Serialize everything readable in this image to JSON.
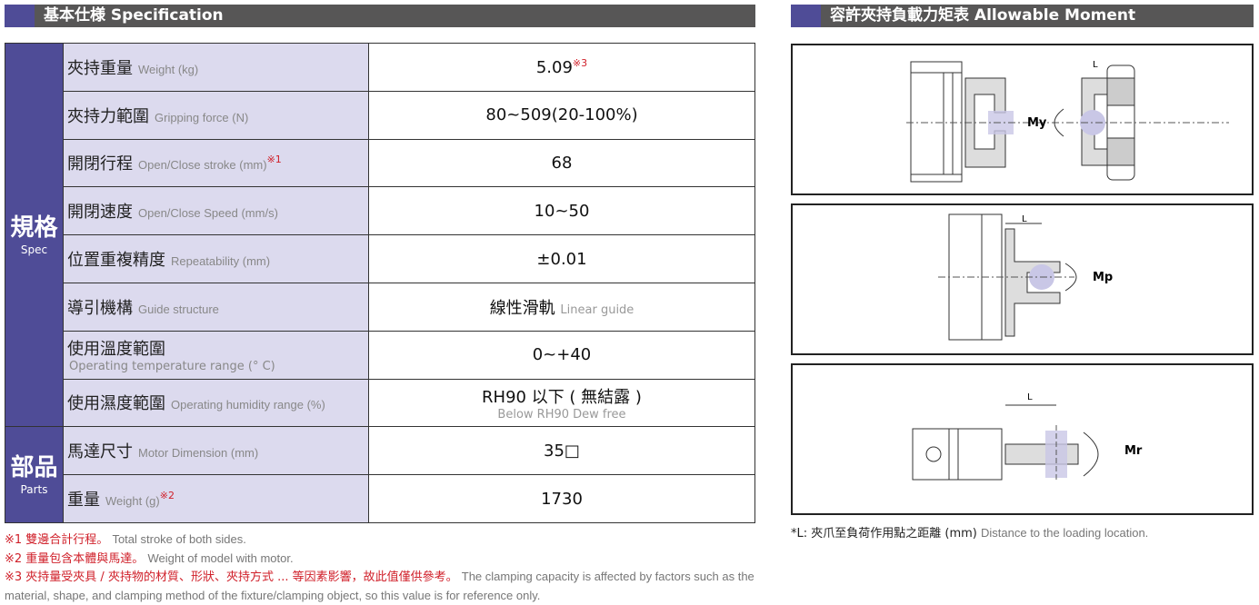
{
  "spec": {
    "title": "基本仕様 Specification",
    "groups": [
      {
        "zh": "規格",
        "en": "Spec"
      },
      {
        "zh": "部品",
        "en": "Parts"
      }
    ],
    "rows": [
      {
        "zh": "夾持重量",
        "en": "Weight (kg)",
        "value": "5.09",
        "value_note": "※3"
      },
      {
        "zh": "夾持力範圍",
        "en": "Gripping force (N)",
        "value": "80~509(20-100%)"
      },
      {
        "zh": "開閉行程",
        "en": "Open/Close stroke (mm)",
        "label_note": "※1",
        "value": "68"
      },
      {
        "zh": "開閉速度",
        "en": "Open/Close Speed (mm/s)",
        "value": "10~50"
      },
      {
        "zh": "位置重複精度",
        "en": "Repeatability (mm)",
        "value": "±0.01"
      },
      {
        "zh": "導引機構",
        "en": "Guide structure",
        "value": "線性滑軌",
        "value_en": "Linear guide"
      },
      {
        "zh": "使用溫度範圍",
        "en": "Operating temperature range (° C)",
        "value": "0~+40"
      },
      {
        "zh": "使用濕度範圍",
        "en": "Operating humidity range (%)",
        "value": "RH90 以下 ( 無結露 )",
        "value_en": "Below RH90 Dew free"
      },
      {
        "zh": "馬達尺寸",
        "en": "Motor Dimension (mm)",
        "value": "35□"
      },
      {
        "zh": "重量",
        "en": "Weight (g)",
        "label_note": "※2",
        "value": "1730"
      }
    ],
    "notes": [
      {
        "zh": "※1 雙邊合計行程。",
        "en": "Total stroke of both sides."
      },
      {
        "zh": "※2 重量包含本體與馬達。",
        "en": "Weight of model with motor."
      },
      {
        "zh": "※3 夾持量受夾具 / 夾持物的材質、形狀、夾持方式 ... 等因素影響，故此值僅供參考。",
        "en": "The clamping capacity is affected by factors such as the material, shape, and clamping method of the fixture/clamping object, so this value is for reference only."
      }
    ]
  },
  "moment": {
    "title": "容許夾持負載力矩表 Allowable Moment",
    "diagrams": [
      {
        "label": "My",
        "dim": "L"
      },
      {
        "label": "Mp",
        "dim": "L"
      },
      {
        "label": "Mr",
        "dim": "L"
      }
    ],
    "footnote_zh": "*L: 夾爪至負荷作用點之距離 (mm)",
    "footnote_en": "Distance to the loading location."
  },
  "colors": {
    "accent": "#4f4c97",
    "header": "#575656",
    "label_bg": "#dcdaee",
    "note_red": "#d0202a"
  }
}
